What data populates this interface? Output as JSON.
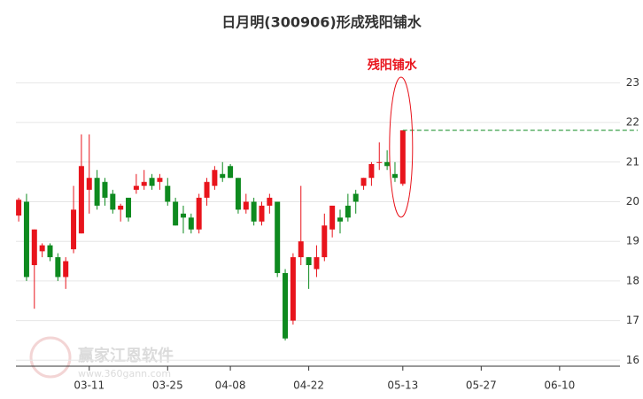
{
  "chart_data": {
    "type": "candlestick",
    "title": "日月明(300906)形成残阳铺水",
    "annotation": "残阳铺水",
    "watermark": "赢家江恩软件",
    "watermark_url": "www.360gann.com",
    "up_color": "#e8141c",
    "down_color": "#0e8a1f",
    "grid": true,
    "x": [
      0,
      1,
      2,
      3,
      4,
      5,
      6,
      7,
      8,
      9,
      10,
      11,
      12,
      13,
      14,
      15,
      16,
      17,
      18,
      19,
      20,
      21,
      22,
      23,
      24,
      25,
      26,
      27,
      28,
      29,
      30,
      31,
      32,
      33,
      34,
      35,
      36,
      37,
      38,
      39,
      40,
      41,
      42,
      43,
      44,
      45,
      46,
      47,
      48,
      49
    ],
    "open": [
      19.65,
      20.0,
      18.4,
      18.75,
      18.9,
      18.6,
      18.1,
      18.8,
      19.2,
      20.3,
      20.6,
      20.5,
      20.2,
      19.8,
      20.1,
      20.3,
      20.4,
      20.6,
      20.5,
      20.4,
      20.0,
      19.7,
      19.6,
      19.3,
      20.1,
      20.4,
      20.7,
      20.9,
      20.6,
      19.8,
      20.0,
      19.5,
      19.9,
      20.0,
      18.2,
      17.0,
      18.6,
      18.6,
      18.3,
      18.6,
      19.3,
      19.6,
      19.9,
      20.2,
      20.4,
      20.6,
      21.0,
      21.0,
      20.7,
      20.45
    ],
    "high": [
      20.1,
      20.2,
      19.3,
      18.95,
      18.95,
      18.7,
      18.6,
      20.4,
      21.7,
      21.7,
      20.8,
      20.6,
      20.3,
      19.95,
      20.1,
      20.7,
      20.8,
      20.7,
      20.7,
      20.6,
      20.1,
      19.9,
      19.7,
      20.2,
      20.6,
      20.9,
      21.0,
      20.95,
      20.6,
      20.2,
      20.1,
      20.0,
      20.2,
      20.0,
      18.3,
      18.7,
      20.4,
      18.6,
      18.9,
      19.7,
      19.9,
      19.8,
      20.2,
      20.3,
      20.6,
      21.0,
      21.5,
      21.3,
      21.0,
      21.8
    ],
    "low": [
      19.5,
      18.0,
      17.3,
      18.6,
      18.5,
      18.0,
      17.8,
      18.7,
      19.2,
      19.7,
      19.8,
      19.9,
      19.7,
      19.5,
      19.5,
      20.2,
      20.3,
      20.3,
      20.3,
      19.9,
      19.4,
      19.2,
      19.2,
      19.2,
      19.9,
      20.3,
      20.5,
      20.6,
      19.7,
      19.7,
      19.4,
      19.4,
      19.7,
      18.1,
      16.5,
      16.9,
      18.4,
      17.8,
      18.1,
      18.5,
      19.1,
      19.2,
      19.5,
      19.7,
      20.3,
      20.4,
      20.8,
      20.8,
      20.5,
      20.4
    ],
    "close": [
      20.05,
      18.1,
      19.3,
      18.9,
      18.6,
      18.1,
      18.5,
      19.8,
      20.9,
      20.6,
      19.9,
      20.1,
      19.8,
      19.9,
      19.6,
      20.4,
      20.5,
      20.4,
      20.6,
      20.0,
      19.4,
      19.6,
      19.3,
      20.1,
      20.5,
      20.8,
      20.6,
      20.6,
      19.8,
      20.0,
      19.5,
      19.9,
      20.1,
      18.2,
      16.55,
      18.6,
      19.0,
      18.4,
      18.6,
      19.4,
      19.9,
      19.5,
      19.6,
      20.0,
      20.6,
      20.95,
      21.0,
      20.9,
      20.6,
      21.8
    ],
    "xlim": [
      -0.35,
      76.7
    ],
    "xticks": [
      {
        "value": 9,
        "label": "03-11"
      },
      {
        "value": 19,
        "label": "03-25"
      },
      {
        "value": 27,
        "label": "04-08"
      },
      {
        "value": 37,
        "label": "04-22"
      },
      {
        "value": 49,
        "label": "05-13"
      },
      {
        "value": 59,
        "label": "05-27"
      },
      {
        "value": 69,
        "label": "06-10"
      }
    ],
    "ylim": [
      15.85,
      23.3
    ],
    "yticks": [
      16,
      17,
      18,
      19,
      20,
      21,
      22,
      23
    ]
  }
}
